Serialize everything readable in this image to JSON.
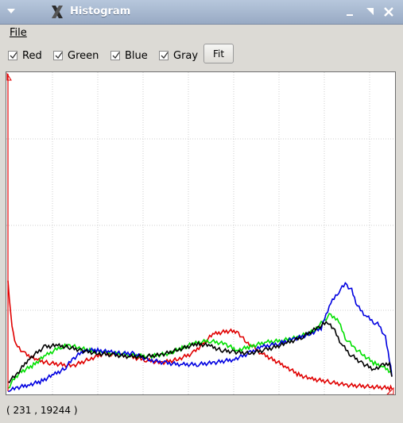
{
  "window": {
    "title": "Histogram"
  },
  "menubar": {
    "file": "File"
  },
  "toolbar": {
    "channels": [
      {
        "label": "Red",
        "checked": true
      },
      {
        "label": "Green",
        "checked": true
      },
      {
        "label": "Blue",
        "checked": true
      },
      {
        "label": "Gray",
        "checked": true
      }
    ],
    "fit_label": "Fit"
  },
  "status": {
    "coordinates": "( 231 , 19244 )"
  },
  "colors": {
    "red": "#e00000",
    "green": "#00e000",
    "blue": "#0000e0",
    "gray": "#000000"
  },
  "chart_data": {
    "type": "line",
    "grid": true,
    "series": [
      {
        "name": "Red",
        "points": [
          [
            0,
            0.35
          ],
          [
            5,
            0.2
          ],
          [
            10,
            0.15
          ],
          [
            20,
            0.12
          ],
          [
            35,
            0.1
          ],
          [
            50,
            0.09
          ],
          [
            80,
            0.08
          ],
          [
            100,
            0.1
          ],
          [
            120,
            0.12
          ],
          [
            150,
            0.11
          ],
          [
            170,
            0.1
          ],
          [
            190,
            0.09
          ],
          [
            210,
            0.1
          ],
          [
            230,
            0.12
          ],
          [
            255,
            0.18
          ],
          [
            272,
            0.19
          ],
          [
            285,
            0.19
          ],
          [
            295,
            0.16
          ],
          [
            305,
            0.14
          ],
          [
            315,
            0.12
          ],
          [
            323,
            0.11
          ],
          [
            330,
            0.1
          ],
          [
            345,
            0.08
          ],
          [
            360,
            0.055
          ],
          [
            375,
            0.04
          ],
          [
            400,
            0.03
          ],
          [
            420,
            0.02
          ],
          [
            450,
            0.015
          ],
          [
            475,
            0.01
          ],
          [
            478,
            0.01
          ]
        ]
      },
      {
        "name": "Green",
        "points": [
          [
            0,
            0.01
          ],
          [
            8,
            0.04
          ],
          [
            15,
            0.06
          ],
          [
            30,
            0.08
          ],
          [
            45,
            0.11
          ],
          [
            65,
            0.14
          ],
          [
            75,
            0.145
          ],
          [
            85,
            0.14
          ],
          [
            100,
            0.13
          ],
          [
            130,
            0.12
          ],
          [
            150,
            0.115
          ],
          [
            175,
            0.11
          ],
          [
            200,
            0.12
          ],
          [
            215,
            0.135
          ],
          [
            230,
            0.15
          ],
          [
            250,
            0.16
          ],
          [
            270,
            0.15
          ],
          [
            285,
            0.13
          ],
          [
            300,
            0.14
          ],
          [
            320,
            0.155
          ],
          [
            340,
            0.16
          ],
          [
            360,
            0.17
          ],
          [
            380,
            0.19
          ],
          [
            400,
            0.24
          ],
          [
            410,
            0.23
          ],
          [
            420,
            0.17
          ],
          [
            430,
            0.14
          ],
          [
            440,
            0.12
          ],
          [
            455,
            0.09
          ],
          [
            465,
            0.08
          ],
          [
            478,
            0.06
          ]
        ]
      },
      {
        "name": "Blue",
        "points": [
          [
            0,
            0.0
          ],
          [
            10,
            0.01
          ],
          [
            25,
            0.02
          ],
          [
            40,
            0.03
          ],
          [
            55,
            0.05
          ],
          [
            70,
            0.07
          ],
          [
            80,
            0.1
          ],
          [
            95,
            0.13
          ],
          [
            110,
            0.13
          ],
          [
            125,
            0.125
          ],
          [
            140,
            0.12
          ],
          [
            155,
            0.12
          ],
          [
            175,
            0.1
          ],
          [
            195,
            0.09
          ],
          [
            215,
            0.085
          ],
          [
            235,
            0.085
          ],
          [
            255,
            0.09
          ],
          [
            280,
            0.1
          ],
          [
            300,
            0.12
          ],
          [
            315,
            0.14
          ],
          [
            335,
            0.15
          ],
          [
            355,
            0.165
          ],
          [
            375,
            0.18
          ],
          [
            390,
            0.2
          ],
          [
            400,
            0.27
          ],
          [
            410,
            0.31
          ],
          [
            420,
            0.34
          ],
          [
            428,
            0.32
          ],
          [
            435,
            0.27
          ],
          [
            445,
            0.24
          ],
          [
            455,
            0.22
          ],
          [
            462,
            0.21
          ],
          [
            470,
            0.17
          ],
          [
            475,
            0.1
          ],
          [
            478,
            0.05
          ]
        ]
      },
      {
        "name": "Gray",
        "points": [
          [
            0,
            0.03
          ],
          [
            10,
            0.05
          ],
          [
            25,
            0.1
          ],
          [
            45,
            0.14
          ],
          [
            60,
            0.145
          ],
          [
            75,
            0.14
          ],
          [
            90,
            0.13
          ],
          [
            110,
            0.12
          ],
          [
            130,
            0.115
          ],
          [
            150,
            0.11
          ],
          [
            170,
            0.11
          ],
          [
            190,
            0.115
          ],
          [
            210,
            0.13
          ],
          [
            235,
            0.15
          ],
          [
            250,
            0.145
          ],
          [
            265,
            0.13
          ],
          [
            280,
            0.125
          ],
          [
            300,
            0.12
          ],
          [
            320,
            0.13
          ],
          [
            345,
            0.15
          ],
          [
            365,
            0.17
          ],
          [
            385,
            0.2
          ],
          [
            398,
            0.22
          ],
          [
            405,
            0.2
          ],
          [
            415,
            0.15
          ],
          [
            425,
            0.12
          ],
          [
            440,
            0.09
          ],
          [
            455,
            0.07
          ],
          [
            465,
            0.08
          ],
          [
            475,
            0.09
          ],
          [
            478,
            0.04
          ]
        ]
      }
    ]
  }
}
